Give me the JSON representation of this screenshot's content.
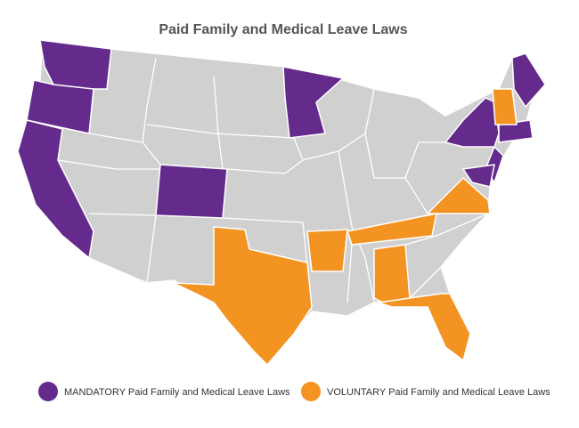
{
  "title": "Paid Family and Medical Leave Laws",
  "legend": [
    {
      "label": "MANDATORY Paid Family and Medical Leave Laws",
      "color": "#642a8c"
    },
    {
      "label": "VOLUNTARY Paid Family and Medical Leave Laws",
      "color": "#f39321"
    }
  ]
}
